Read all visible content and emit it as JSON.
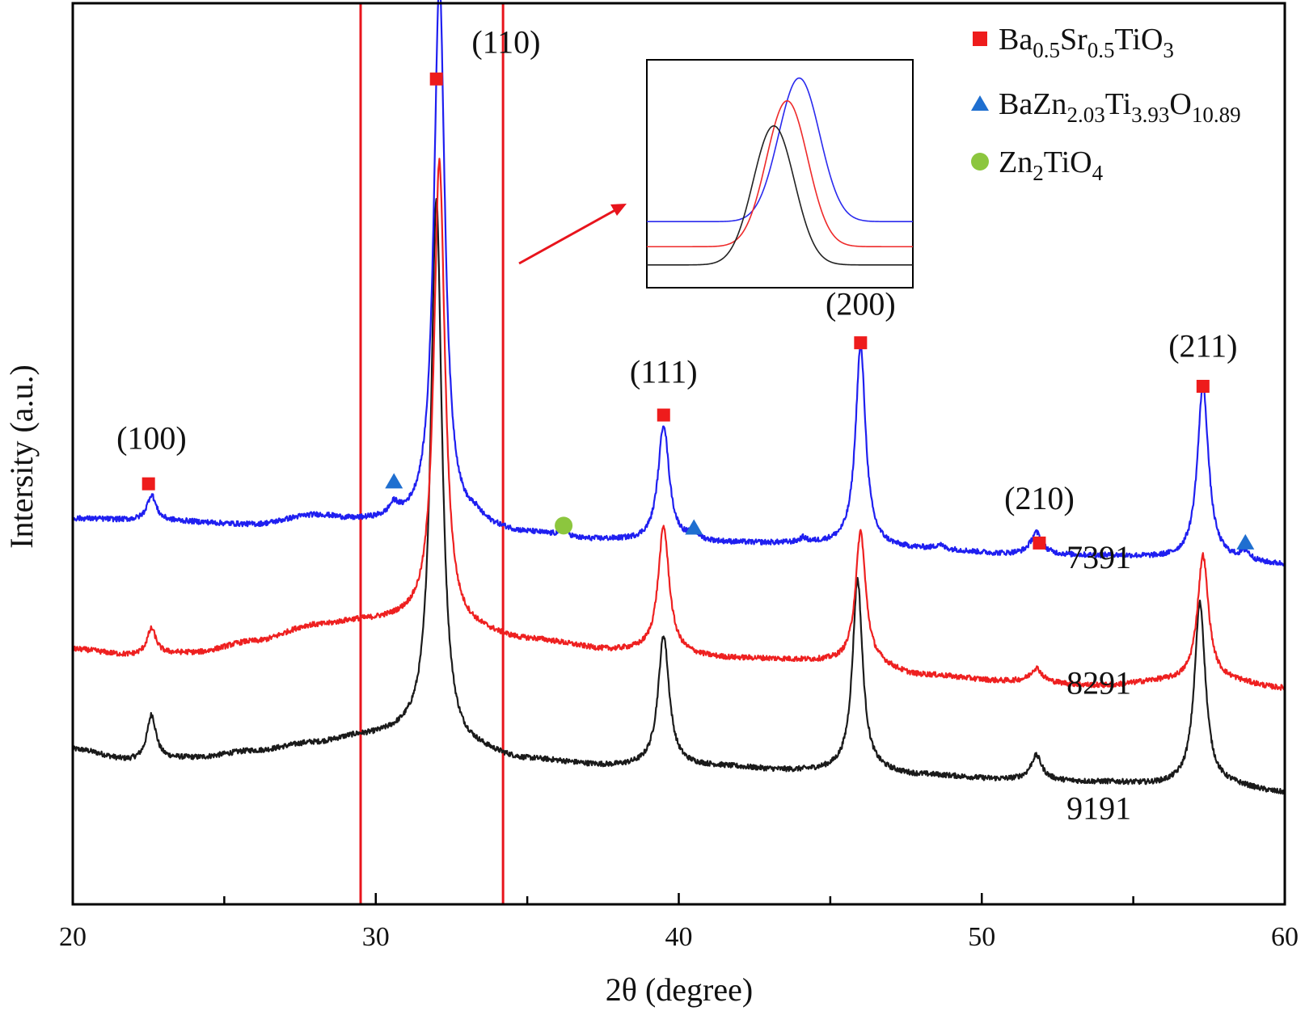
{
  "chart_data": {
    "type": "line",
    "title": "",
    "xlabel": "2θ (degree)",
    "ylabel": "Intersity (a.u.)",
    "xlim": [
      20,
      60
    ],
    "xticks": [
      "20",
      "30",
      "40",
      "50",
      "60"
    ],
    "y_ticks_shown": false,
    "grid": false,
    "legend_position": "top-right",
    "legend": [
      {
        "marker": "square",
        "color": "#ee1c1c",
        "label_parts": [
          [
            "Ba",
            ""
          ],
          [
            "0.5",
            "sub"
          ],
          [
            "Sr",
            ""
          ],
          [
            "0.5",
            "sub"
          ],
          [
            "TiO",
            ""
          ],
          [
            "3",
            "sub"
          ]
        ]
      },
      {
        "marker": "triangle",
        "color": "#1f6fd0",
        "label_parts": [
          [
            "BaZn",
            ""
          ],
          [
            "2.03",
            "sub"
          ],
          [
            "Ti",
            ""
          ],
          [
            "3.93",
            "sub"
          ],
          [
            "O",
            ""
          ],
          [
            "10.89",
            "sub"
          ]
        ]
      },
      {
        "marker": "circle",
        "color": "#8cc63e",
        "label_parts": [
          [
            "Zn",
            ""
          ],
          [
            "2",
            "sub"
          ],
          [
            "TiO",
            ""
          ],
          [
            "4",
            "sub"
          ]
        ]
      }
    ],
    "series": [
      {
        "name": "7391",
        "color": "#1f1ff0",
        "baseline": [
          [
            20,
            44.3
          ],
          [
            23,
            44.0
          ],
          [
            26,
            43.6
          ],
          [
            28,
            44.6
          ],
          [
            29.5,
            44.0
          ],
          [
            31,
            43.7
          ],
          [
            33,
            43.4
          ],
          [
            35,
            42.5
          ],
          [
            37,
            41.8
          ],
          [
            40,
            41.5
          ],
          [
            44,
            41.4
          ],
          [
            48,
            40.8
          ],
          [
            51,
            40.2
          ],
          [
            54,
            40.0
          ],
          [
            57,
            39.6
          ],
          [
            60,
            39.0
          ]
        ],
        "peaks": [
          [
            22.6,
            3.0,
            0.18
          ],
          [
            30.6,
            1.4,
            0.2
          ],
          [
            32.1,
            62.5,
            0.22
          ],
          [
            33.3,
            0.6,
            0.2
          ],
          [
            36.2,
            1.0,
            0.15
          ],
          [
            39.5,
            13.5,
            0.22
          ],
          [
            40.5,
            0.8,
            0.2
          ],
          [
            44.1,
            0.5,
            0.12
          ],
          [
            46.0,
            23.0,
            0.2
          ],
          [
            48.6,
            0.5,
            0.12
          ],
          [
            51.8,
            2.5,
            0.22
          ],
          [
            57.3,
            20.0,
            0.22
          ],
          [
            58.7,
            1.0,
            0.2
          ]
        ],
        "noise": 0.3
      },
      {
        "name": "8291",
        "color": "#ee2020",
        "baseline": [
          [
            20,
            29.3
          ],
          [
            22,
            28.6
          ],
          [
            24,
            28.9
          ],
          [
            26,
            30.2
          ],
          [
            28,
            32.0
          ],
          [
            29.5,
            32.5
          ],
          [
            31,
            32.6
          ],
          [
            33,
            31.3
          ],
          [
            35,
            30.3
          ],
          [
            38,
            29.1
          ],
          [
            42,
            28.2
          ],
          [
            46,
            27.8
          ],
          [
            48,
            26.3
          ],
          [
            51,
            25.6
          ],
          [
            54,
            25.1
          ],
          [
            56,
            25.6
          ],
          [
            58,
            25.6
          ],
          [
            60,
            24.8
          ]
        ],
        "peaks": [
          [
            22.6,
            3.0,
            0.18
          ],
          [
            32.1,
            53.5,
            0.22
          ],
          [
            39.5,
            14.5,
            0.22
          ],
          [
            46.0,
            15.0,
            0.2
          ],
          [
            51.8,
            1.6,
            0.22
          ],
          [
            57.3,
            14.5,
            0.22
          ]
        ],
        "noise": 0.3
      },
      {
        "name": "9191",
        "color": "#1a1a1a",
        "baseline": [
          [
            20,
            17.8
          ],
          [
            22,
            16.5
          ],
          [
            24,
            16.8
          ],
          [
            26,
            17.6
          ],
          [
            28,
            18.5
          ],
          [
            29.5,
            19.2
          ],
          [
            31,
            19.4
          ],
          [
            33,
            17.6
          ],
          [
            35,
            16.5
          ],
          [
            38,
            15.8
          ],
          [
            41,
            15.8
          ],
          [
            44,
            15.3
          ],
          [
            46,
            15.3
          ],
          [
            48,
            14.8
          ],
          [
            51,
            14.3
          ],
          [
            54,
            14.0
          ],
          [
            56,
            13.7
          ],
          [
            58,
            13.6
          ],
          [
            60,
            12.8
          ]
        ],
        "peaks": [
          [
            22.6,
            5.2,
            0.18
          ],
          [
            32.0,
            62.5,
            0.22
          ],
          [
            39.5,
            15.0,
            0.22
          ],
          [
            45.9,
            22.0,
            0.2
          ],
          [
            51.8,
            2.8,
            0.22
          ],
          [
            57.2,
            21.0,
            0.22
          ]
        ],
        "noise": 0.3
      }
    ],
    "sample_labels": [
      {
        "text": "7391",
        "x": 52.8,
        "y": 38.6
      },
      {
        "text": "8291",
        "x": 52.8,
        "y": 24.2
      },
      {
        "text": "9191",
        "x": 52.8,
        "y": 9.8
      }
    ],
    "plane_labels": [
      {
        "text": "(100)",
        "x": 22.6,
        "y": 52.3
      },
      {
        "text": "(110)",
        "x": 34.3,
        "y": 97.8
      },
      {
        "text": "(111)",
        "x": 39.5,
        "y": 59.9
      },
      {
        "text": "(200)",
        "x": 46.0,
        "y": 67.7
      },
      {
        "text": "(210)",
        "x": 51.9,
        "y": 45.4
      },
      {
        "text": "(211)",
        "x": 57.3,
        "y": 62.9
      }
    ],
    "phase_markers": [
      {
        "phase": "Ba0.5Sr0.5TiO3",
        "shape": "square",
        "x": 22.5,
        "y": 48.3
      },
      {
        "phase": "Ba0.5Sr0.5TiO3",
        "shape": "square",
        "x": 32.0,
        "y": 94.8
      },
      {
        "phase": "Ba0.5Sr0.5TiO3",
        "shape": "square",
        "x": 39.5,
        "y": 56.2
      },
      {
        "phase": "Ba0.5Sr0.5TiO3",
        "shape": "square",
        "x": 46.0,
        "y": 64.5
      },
      {
        "phase": "Ba0.5Sr0.5TiO3",
        "shape": "square",
        "x": 51.9,
        "y": 41.5
      },
      {
        "phase": "Ba0.5Sr0.5TiO3",
        "shape": "square",
        "x": 57.3,
        "y": 59.5
      },
      {
        "phase": "BaZn2.03Ti3.93O10.89",
        "shape": "triangle",
        "x": 30.6,
        "y": 48.6
      },
      {
        "phase": "BaZn2.03Ti3.93O10.89",
        "shape": "triangle",
        "x": 40.5,
        "y": 43.3
      },
      {
        "phase": "BaZn2.03Ti3.93O10.89",
        "shape": "triangle",
        "x": 58.7,
        "y": 41.6
      },
      {
        "phase": "Zn2TiO4",
        "shape": "circle",
        "x": 36.2,
        "y": 43.5
      }
    ],
    "highlight_box": {
      "x": [
        29.5,
        34.2
      ],
      "y": [
        0,
        103.5
      ],
      "color": "#e8141c"
    },
    "inset": {
      "description_hidden": true,
      "x_range": [
        31.0,
        33.2
      ],
      "series": [
        {
          "name": "7391",
          "color": "#2a2aee",
          "peak_x": 32.26,
          "height": 63,
          "offset": 29
        },
        {
          "name": "8291",
          "color": "#ee2a2a",
          "peak_x": 32.16,
          "height": 64,
          "offset": 18
        },
        {
          "name": "9191",
          "color": "#222222",
          "peak_x": 32.05,
          "height": 61,
          "offset": 10
        }
      ]
    }
  }
}
